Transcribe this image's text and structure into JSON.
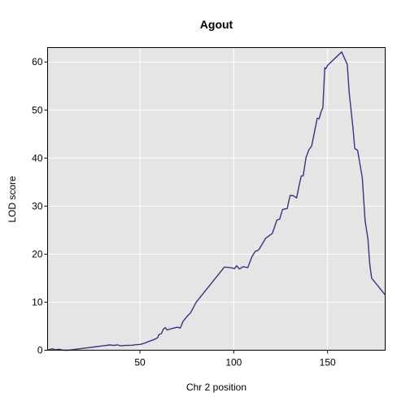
{
  "chart_data": {
    "type": "line",
    "title": "Agout",
    "xlabel": "Chr 2 position",
    "ylabel": "LOD score",
    "xlim": [
      0.8,
      180.7
    ],
    "ylim": [
      0,
      63.0
    ],
    "xticks": [
      50,
      100,
      150
    ],
    "yticks": [
      0,
      10,
      20,
      30,
      40,
      50,
      60
    ],
    "grid": true,
    "background": "#e5e5e5",
    "grid_color": "#ffffff",
    "series": [
      {
        "color": "#3a3480",
        "x": [
          0.8,
          3,
          5,
          7,
          9,
          12,
          14,
          18,
          22,
          26,
          30,
          34,
          36,
          38,
          40,
          42,
          44,
          46,
          48,
          50,
          52,
          54,
          56,
          58,
          59.5,
          60,
          61.5,
          62.5,
          63.5,
          64.5,
          66,
          68,
          70,
          71.5,
          73,
          75.5,
          77,
          80,
          95,
          98,
          100.5,
          101.5,
          103,
          105,
          106,
          107.5,
          109.5,
          110.5,
          111.5,
          112.5,
          113.5,
          117,
          120.5,
          121,
          123,
          124.5,
          126,
          128.5,
          130,
          131.5,
          133.5,
          135,
          136,
          137,
          138.5,
          140,
          141.5,
          144.5,
          145.5,
          146.5,
          147.5,
          148.5,
          149,
          149.5,
          150,
          157.5,
          160.5,
          161.5,
          163.5,
          164.5,
          166,
          168.5,
          170,
          171.5,
          172.5,
          173.5,
          177,
          180.7
        ],
        "y": [
          0.0,
          0.3,
          0.1,
          0.2,
          0.0,
          0.0,
          0.1,
          0.3,
          0.5,
          0.7,
          0.9,
          1.1,
          1.0,
          1.1,
          0.9,
          1.0,
          1.0,
          1.05,
          1.15,
          1.2,
          1.4,
          1.7,
          2.0,
          2.3,
          2.6,
          3.2,
          3.5,
          4.4,
          4.7,
          4.2,
          4.4,
          4.6,
          4.8,
          4.6,
          6.0,
          7.2,
          7.8,
          10.0,
          17.3,
          17.2,
          17.0,
          17.6,
          16.9,
          17.4,
          17.3,
          17.2,
          19.3,
          20.0,
          20.6,
          20.7,
          21.0,
          23.3,
          24.3,
          24.8,
          27.1,
          27.3,
          29.3,
          29.5,
          32.2,
          32.2,
          31.7,
          34.6,
          36.3,
          36.3,
          40.1,
          41.7,
          42.5,
          48.3,
          48.2,
          49.6,
          50.5,
          58.8,
          58.6,
          58.9,
          59.3,
          62.1,
          59.5,
          53.7,
          46.4,
          42.0,
          41.6,
          35.9,
          26.9,
          23.2,
          17.8,
          15.0,
          13.3,
          11.5
        ]
      }
    ]
  }
}
